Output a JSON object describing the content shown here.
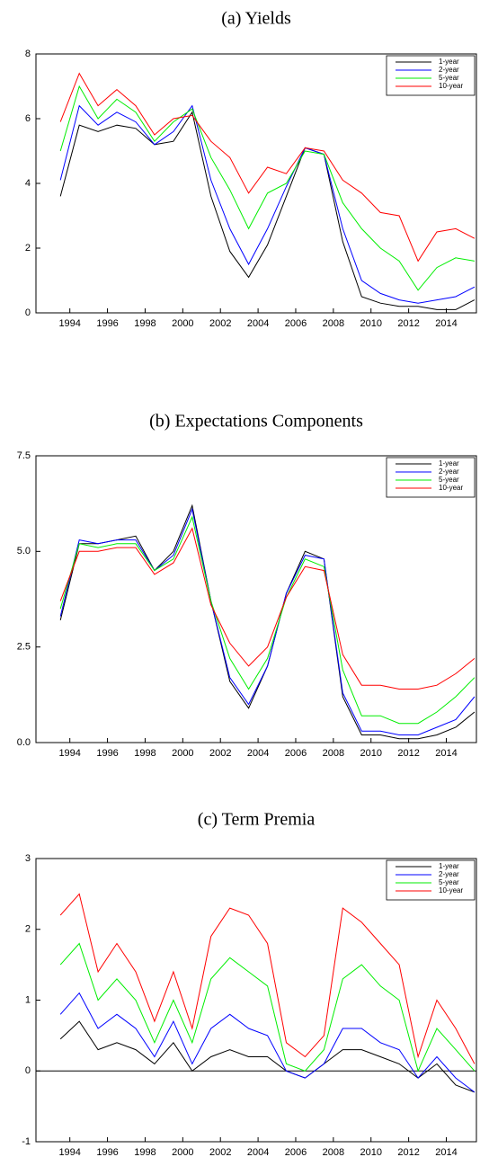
{
  "chart_data": [
    {
      "type": "line",
      "title": "(a) Yields",
      "x": [
        1993.5,
        1994.5,
        1995.5,
        1996.5,
        1997.5,
        1998.5,
        1999.5,
        2000.5,
        2001.5,
        2002.5,
        2003.5,
        2004.5,
        2005.5,
        2006.5,
        2007.5,
        2008.5,
        2009.5,
        2010.5,
        2011.5,
        2012.5,
        2013.5,
        2014.5,
        2015.5
      ],
      "xlim": [
        1992.2,
        2015.6
      ],
      "xticks": [
        1994,
        1996,
        1998,
        2000,
        2002,
        2004,
        2006,
        2008,
        2010,
        2012,
        2014
      ],
      "ylim": [
        0,
        8
      ],
      "yticks": [
        0,
        2,
        4,
        6,
        8
      ],
      "legend": "upper right",
      "zero_line": false,
      "series": [
        {
          "name": "1-year",
          "color": "#000000",
          "values": [
            3.6,
            5.8,
            5.6,
            5.8,
            5.7,
            5.2,
            5.3,
            6.2,
            3.6,
            1.9,
            1.1,
            2.1,
            3.6,
            5.1,
            4.9,
            2.2,
            0.5,
            0.3,
            0.2,
            0.2,
            0.1,
            0.1,
            0.4
          ]
        },
        {
          "name": "2-year",
          "color": "#0000ff",
          "values": [
            4.1,
            6.4,
            5.8,
            6.2,
            5.9,
            5.2,
            5.6,
            6.4,
            4.1,
            2.6,
            1.5,
            2.6,
            3.9,
            5.1,
            4.9,
            2.6,
            1.0,
            0.6,
            0.4,
            0.3,
            0.4,
            0.5,
            0.8
          ]
        },
        {
          "name": "5-year",
          "color": "#00ee00",
          "values": [
            5.0,
            7.0,
            6.0,
            6.6,
            6.2,
            5.3,
            5.9,
            6.3,
            4.8,
            3.8,
            2.6,
            3.7,
            4.0,
            5.0,
            4.9,
            3.4,
            2.6,
            2.0,
            1.6,
            0.7,
            1.4,
            1.7,
            1.6
          ]
        },
        {
          "name": "10-year",
          "color": "#ff0000",
          "values": [
            5.9,
            7.4,
            6.4,
            6.9,
            6.4,
            5.5,
            6.0,
            6.1,
            5.3,
            4.8,
            3.7,
            4.5,
            4.3,
            5.1,
            5.0,
            4.1,
            3.7,
            3.1,
            3.0,
            1.6,
            2.5,
            2.6,
            2.3
          ]
        }
      ]
    },
    {
      "type": "line",
      "title": "(b) Expectations Components",
      "x": [
        1993.5,
        1994.5,
        1995.5,
        1996.5,
        1997.5,
        1998.5,
        1999.5,
        2000.5,
        2001.5,
        2002.5,
        2003.5,
        2004.5,
        2005.5,
        2006.5,
        2007.5,
        2008.5,
        2009.5,
        2010.5,
        2011.5,
        2012.5,
        2013.5,
        2014.5,
        2015.5
      ],
      "xlim": [
        1992.2,
        2015.6
      ],
      "xticks": [
        1994,
        1996,
        1998,
        2000,
        2002,
        2004,
        2006,
        2008,
        2010,
        2012,
        2014
      ],
      "ylim": [
        0,
        7.5
      ],
      "yticks": [
        {
          "value": 0,
          "label": "0.0"
        },
        2.5,
        {
          "value": 5,
          "label": "5.0"
        },
        7.5
      ],
      "legend": "upper right",
      "zero_line": false,
      "series": [
        {
          "name": "1-year",
          "color": "#000000",
          "values": [
            3.2,
            5.2,
            5.2,
            5.3,
            5.4,
            4.5,
            5.0,
            6.2,
            3.7,
            1.6,
            0.9,
            2.0,
            3.9,
            5.0,
            4.8,
            1.2,
            0.2,
            0.2,
            0.1,
            0.1,
            0.2,
            0.4,
            0.8
          ]
        },
        {
          "name": "2-year",
          "color": "#0000ff",
          "values": [
            3.3,
            5.3,
            5.2,
            5.3,
            5.3,
            4.5,
            4.9,
            6.1,
            3.7,
            1.7,
            1.0,
            2.0,
            3.9,
            4.9,
            4.8,
            1.3,
            0.3,
            0.3,
            0.2,
            0.2,
            0.4,
            0.6,
            1.2
          ]
        },
        {
          "name": "5-year",
          "color": "#00ee00",
          "values": [
            3.5,
            5.2,
            5.1,
            5.2,
            5.2,
            4.5,
            4.8,
            5.9,
            3.7,
            2.2,
            1.4,
            2.2,
            3.8,
            4.8,
            4.6,
            1.9,
            0.7,
            0.7,
            0.5,
            0.5,
            0.8,
            1.2,
            1.7
          ]
        },
        {
          "name": "10-year",
          "color": "#ff0000",
          "values": [
            3.7,
            5.0,
            5.0,
            5.1,
            5.1,
            4.4,
            4.7,
            5.6,
            3.6,
            2.6,
            2.0,
            2.5,
            3.8,
            4.6,
            4.5,
            2.3,
            1.5,
            1.5,
            1.4,
            1.4,
            1.5,
            1.8,
            2.2
          ]
        }
      ]
    },
    {
      "type": "line",
      "title": "(c) Term Premia",
      "x": [
        1993.5,
        1994.5,
        1995.5,
        1996.5,
        1997.5,
        1998.5,
        1999.5,
        2000.5,
        2001.5,
        2002.5,
        2003.5,
        2004.5,
        2005.5,
        2006.5,
        2007.5,
        2008.5,
        2009.5,
        2010.5,
        2011.5,
        2012.5,
        2013.5,
        2014.5,
        2015.5
      ],
      "xlim": [
        1992.2,
        2015.6
      ],
      "xticks": [
        1994,
        1996,
        1998,
        2000,
        2002,
        2004,
        2006,
        2008,
        2010,
        2012,
        2014
      ],
      "ylim": [
        -1,
        3
      ],
      "yticks": [
        -1,
        0,
        1,
        2,
        3
      ],
      "legend": "upper right",
      "zero_line": true,
      "series": [
        {
          "name": "1-year",
          "color": "#000000",
          "values": [
            0.45,
            0.7,
            0.3,
            0.4,
            0.3,
            0.1,
            0.4,
            0.0,
            0.2,
            0.3,
            0.2,
            0.2,
            0.0,
            -0.1,
            0.1,
            0.3,
            0.3,
            0.2,
            0.1,
            -0.1,
            0.1,
            -0.2,
            -0.3
          ]
        },
        {
          "name": "2-year",
          "color": "#0000ff",
          "values": [
            0.8,
            1.1,
            0.6,
            0.8,
            0.6,
            0.2,
            0.7,
            0.1,
            0.6,
            0.8,
            0.6,
            0.5,
            0.0,
            -0.1,
            0.1,
            0.6,
            0.6,
            0.4,
            0.3,
            -0.1,
            0.2,
            -0.1,
            -0.3
          ]
        },
        {
          "name": "5-year",
          "color": "#00ee00",
          "values": [
            1.5,
            1.8,
            1.0,
            1.3,
            1.0,
            0.4,
            1.0,
            0.4,
            1.3,
            1.6,
            1.4,
            1.2,
            0.1,
            0.0,
            0.3,
            1.3,
            1.5,
            1.2,
            1.0,
            0.0,
            0.6,
            0.3,
            0.0
          ]
        },
        {
          "name": "10-year",
          "color": "#ff0000",
          "values": [
            2.2,
            2.5,
            1.4,
            1.8,
            1.4,
            0.7,
            1.4,
            0.6,
            1.9,
            2.3,
            2.2,
            1.8,
            0.4,
            0.2,
            0.5,
            2.3,
            2.1,
            1.8,
            1.5,
            0.2,
            1.0,
            0.6,
            0.1
          ]
        }
      ]
    }
  ]
}
